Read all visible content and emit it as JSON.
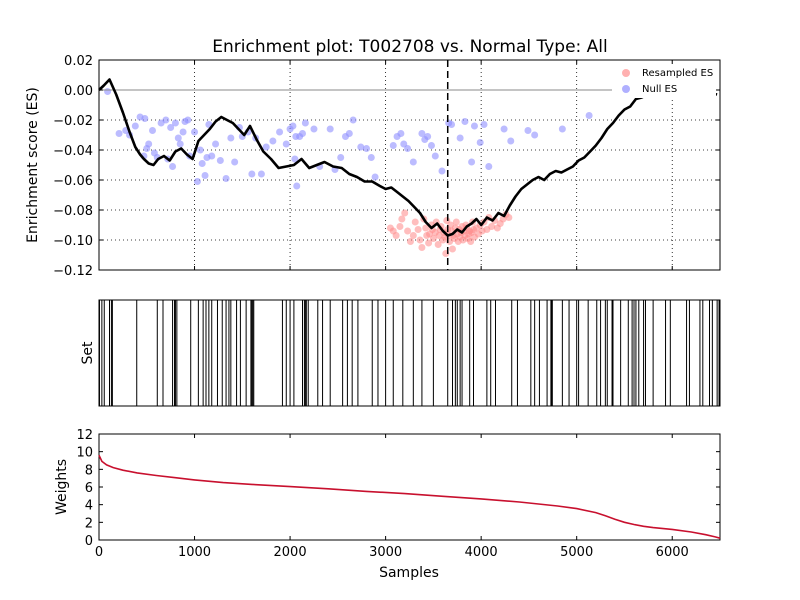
{
  "chart_data": [
    {
      "panel": "enrichment",
      "type": "line",
      "title": "Enrichment plot: T002708 vs. Normal Type: All",
      "xlabel": "",
      "ylabel": "Enrichment score (ES)",
      "xlim": [
        0,
        6500
      ],
      "ylim": [
        -0.12,
        0.02
      ],
      "yticks": [
        "0.02",
        "0.00",
        "−0.02",
        "−0.04",
        "−0.06",
        "−0.08",
        "−0.10",
        "−0.12"
      ],
      "grid": true,
      "legend_position": "top-right",
      "legend": [
        {
          "label": "Resampled ES",
          "color": "#ffb0b0"
        },
        {
          "label": "Null ES",
          "color": "#b0b0ff"
        }
      ],
      "vline_x": 3650,
      "es_line": {
        "color": "#000000",
        "x": [
          0,
          50,
          110,
          180,
          250,
          320,
          380,
          430,
          470,
          520,
          570,
          620,
          680,
          740,
          800,
          860,
          920,
          980,
          1040,
          1100,
          1160,
          1220,
          1280,
          1340,
          1400,
          1460,
          1520,
          1580,
          1650,
          1720,
          1800,
          1880,
          1960,
          2040,
          2120,
          2200,
          2280,
          2360,
          2450,
          2540,
          2620,
          2700,
          2780,
          2860,
          2940,
          3000,
          3060,
          3120,
          3180,
          3240,
          3300,
          3360,
          3420,
          3480,
          3540,
          3600,
          3650,
          3700,
          3750,
          3800,
          3850,
          3900,
          3950,
          4000,
          4060,
          4120,
          4180,
          4240,
          4300,
          4360,
          4420,
          4480,
          4540,
          4600,
          4660,
          4720,
          4780,
          4840,
          4900,
          4960,
          5020,
          5080,
          5140,
          5200,
          5260,
          5320,
          5380,
          5440,
          5500,
          5560,
          5620,
          5680,
          5740,
          5800,
          5860,
          5920,
          5980,
          6040,
          6100,
          6160,
          6220,
          6280,
          6340,
          6400,
          6470
        ],
        "y": [
          0.0,
          0.003,
          0.007,
          -0.003,
          -0.015,
          -0.028,
          -0.038,
          -0.043,
          -0.046,
          -0.049,
          -0.05,
          -0.046,
          -0.044,
          -0.047,
          -0.041,
          -0.039,
          -0.043,
          -0.046,
          -0.034,
          -0.03,
          -0.026,
          -0.021,
          -0.018,
          -0.02,
          -0.022,
          -0.026,
          -0.03,
          -0.024,
          -0.033,
          -0.041,
          -0.046,
          -0.052,
          -0.051,
          -0.05,
          -0.046,
          -0.052,
          -0.05,
          -0.048,
          -0.051,
          -0.052,
          -0.056,
          -0.058,
          -0.061,
          -0.061,
          -0.064,
          -0.066,
          -0.065,
          -0.068,
          -0.071,
          -0.074,
          -0.078,
          -0.082,
          -0.088,
          -0.092,
          -0.089,
          -0.094,
          -0.097,
          -0.096,
          -0.093,
          -0.095,
          -0.091,
          -0.089,
          -0.086,
          -0.09,
          -0.085,
          -0.087,
          -0.082,
          -0.084,
          -0.077,
          -0.071,
          -0.066,
          -0.063,
          -0.06,
          -0.058,
          -0.06,
          -0.056,
          -0.054,
          -0.055,
          -0.053,
          -0.051,
          -0.047,
          -0.045,
          -0.041,
          -0.037,
          -0.032,
          -0.026,
          -0.022,
          -0.017,
          -0.013,
          -0.011,
          -0.006,
          -0.005,
          -0.003,
          -0.004,
          -0.002,
          -0.001,
          -0.001,
          -0.001,
          0.0,
          0.001,
          0.0,
          0.0,
          0.0,
          -0.002,
          -0.003
        ]
      },
      "null_es": {
        "color": "#8f8fff",
        "points": [
          [
            90,
            -0.001
          ],
          [
            210,
            -0.029
          ],
          [
            280,
            -0.027
          ],
          [
            320,
            -0.03
          ],
          [
            380,
            -0.024
          ],
          [
            430,
            -0.018
          ],
          [
            470,
            -0.044
          ],
          [
            480,
            -0.019
          ],
          [
            500,
            -0.039
          ],
          [
            520,
            -0.036
          ],
          [
            560,
            -0.027
          ],
          [
            580,
            -0.042
          ],
          [
            610,
            -0.045
          ],
          [
            650,
            -0.022
          ],
          [
            700,
            -0.02
          ],
          [
            720,
            -0.046
          ],
          [
            750,
            -0.025
          ],
          [
            770,
            -0.051
          ],
          [
            800,
            -0.022
          ],
          [
            830,
            -0.032
          ],
          [
            850,
            -0.036
          ],
          [
            880,
            -0.028
          ],
          [
            900,
            -0.021
          ],
          [
            930,
            -0.02
          ],
          [
            950,
            -0.044
          ],
          [
            1000,
            -0.028
          ],
          [
            1030,
            -0.061
          ],
          [
            1060,
            -0.04
          ],
          [
            1080,
            -0.049
          ],
          [
            1110,
            -0.057
          ],
          [
            1130,
            -0.045
          ],
          [
            1150,
            -0.023
          ],
          [
            1180,
            -0.044
          ],
          [
            1220,
            -0.036
          ],
          [
            1270,
            -0.047
          ],
          [
            1330,
            -0.059
          ],
          [
            1380,
            -0.032
          ],
          [
            1420,
            -0.048
          ],
          [
            1470,
            -0.025
          ],
          [
            1500,
            -0.031
          ],
          [
            1560,
            -0.028
          ],
          [
            1600,
            -0.056
          ],
          [
            1640,
            -0.032
          ],
          [
            1700,
            -0.056
          ],
          [
            1750,
            -0.038
          ],
          [
            1820,
            -0.034
          ],
          [
            1890,
            -0.028
          ],
          [
            1960,
            -0.036
          ],
          [
            2000,
            -0.026
          ],
          [
            2030,
            -0.024
          ],
          [
            2050,
            -0.046
          ],
          [
            2060,
            -0.031
          ],
          [
            2070,
            -0.064
          ],
          [
            2100,
            -0.031
          ],
          [
            2130,
            -0.029
          ],
          [
            2160,
            -0.022
          ],
          [
            2250,
            -0.026
          ],
          [
            2310,
            -0.051
          ],
          [
            2420,
            -0.026
          ],
          [
            2470,
            -0.053
          ],
          [
            2530,
            -0.045
          ],
          [
            2580,
            -0.031
          ],
          [
            2620,
            -0.029
          ],
          [
            2660,
            -0.02
          ],
          [
            2740,
            -0.038
          ],
          [
            2800,
            -0.039
          ],
          [
            2850,
            -0.045
          ],
          [
            2890,
            -0.058
          ],
          [
            3080,
            -0.037
          ],
          [
            3120,
            -0.031
          ],
          [
            3160,
            -0.029
          ],
          [
            3190,
            -0.036
          ],
          [
            3230,
            -0.039
          ],
          [
            3290,
            -0.048
          ],
          [
            3380,
            -0.029
          ],
          [
            3410,
            -0.033
          ],
          [
            3440,
            -0.031
          ],
          [
            3480,
            -0.037
          ],
          [
            3520,
            -0.044
          ],
          [
            3590,
            -0.054
          ],
          [
            3660,
            -0.022
          ],
          [
            3690,
            -0.023
          ],
          [
            3780,
            -0.032
          ],
          [
            3830,
            -0.021
          ],
          [
            3900,
            -0.048
          ],
          [
            3930,
            -0.024
          ],
          [
            3990,
            -0.035
          ],
          [
            4030,
            -0.023
          ],
          [
            4080,
            -0.051
          ],
          [
            4240,
            -0.026
          ],
          [
            4310,
            -0.034
          ],
          [
            4490,
            -0.027
          ],
          [
            4560,
            -0.03
          ],
          [
            4850,
            -0.026
          ],
          [
            5130,
            -0.017
          ]
        ]
      },
      "resampled_es": {
        "color": "#ff8888",
        "points": [
          [
            3050,
            -0.092
          ],
          [
            3080,
            -0.094
          ],
          [
            3110,
            -0.097
          ],
          [
            3150,
            -0.091
          ],
          [
            3170,
            -0.086
          ],
          [
            3200,
            -0.082
          ],
          [
            3230,
            -0.094
          ],
          [
            3260,
            -0.101
          ],
          [
            3290,
            -0.097
          ],
          [
            3310,
            -0.088
          ],
          [
            3340,
            -0.093
          ],
          [
            3360,
            -0.1
          ],
          [
            3380,
            -0.105
          ],
          [
            3400,
            -0.086
          ],
          [
            3420,
            -0.092
          ],
          [
            3430,
            -0.097
          ],
          [
            3450,
            -0.102
          ],
          [
            3460,
            -0.096
          ],
          [
            3480,
            -0.09
          ],
          [
            3490,
            -0.093
          ],
          [
            3500,
            -0.099
          ],
          [
            3520,
            -0.095
          ],
          [
            3530,
            -0.088
          ],
          [
            3550,
            -0.103
          ],
          [
            3560,
            -0.097
          ],
          [
            3570,
            -0.093
          ],
          [
            3580,
            -0.091
          ],
          [
            3600,
            -0.1
          ],
          [
            3610,
            -0.095
          ],
          [
            3620,
            -0.098
          ],
          [
            3630,
            -0.109
          ],
          [
            3640,
            -0.087
          ],
          [
            3650,
            -0.093
          ],
          [
            3660,
            -0.097
          ],
          [
            3670,
            -0.101
          ],
          [
            3680,
            -0.09
          ],
          [
            3690,
            -0.094
          ],
          [
            3700,
            -0.106
          ],
          [
            3710,
            -0.097
          ],
          [
            3720,
            -0.099
          ],
          [
            3730,
            -0.092
          ],
          [
            3740,
            -0.088
          ],
          [
            3750,
            -0.096
          ],
          [
            3760,
            -0.101
          ],
          [
            3770,
            -0.093
          ],
          [
            3780,
            -0.098
          ],
          [
            3790,
            -0.095
          ],
          [
            3800,
            -0.091
          ],
          [
            3810,
            -0.1
          ],
          [
            3820,
            -0.094
          ],
          [
            3830,
            -0.097
          ],
          [
            3840,
            -0.09
          ],
          [
            3850,
            -0.092
          ],
          [
            3860,
            -0.099
          ],
          [
            3870,
            -0.096
          ],
          [
            3880,
            -0.094
          ],
          [
            3890,
            -0.101
          ],
          [
            3900,
            -0.095
          ],
          [
            3910,
            -0.088
          ],
          [
            3920,
            -0.093
          ],
          [
            3930,
            -0.098
          ],
          [
            3950,
            -0.092
          ],
          [
            3970,
            -0.096
          ],
          [
            3990,
            -0.09
          ],
          [
            4010,
            -0.094
          ],
          [
            4030,
            -0.088
          ],
          [
            4060,
            -0.093
          ],
          [
            4080,
            -0.085
          ],
          [
            4110,
            -0.091
          ],
          [
            4140,
            -0.087
          ],
          [
            4170,
            -0.092
          ],
          [
            4200,
            -0.089
          ],
          [
            4230,
            -0.086
          ],
          [
            4260,
            -0.083
          ],
          [
            4290,
            -0.085
          ]
        ]
      }
    },
    {
      "panel": "set",
      "type": "barcode",
      "ylabel": "Set",
      "xlim": [
        0,
        6500
      ],
      "hits": [
        5,
        30,
        55,
        110,
        130,
        140,
        395,
        610,
        670,
        770,
        790,
        800,
        815,
        960,
        1040,
        1090,
        1120,
        1150,
        1180,
        1240,
        1290,
        1330,
        1360,
        1380,
        1440,
        1480,
        1540,
        1590,
        1600,
        1610,
        1620,
        1920,
        1960,
        2000,
        2040,
        2130,
        2150,
        2160,
        2170,
        2190,
        2290,
        2340,
        2420,
        2550,
        2600,
        2650,
        2710,
        2860,
        2920,
        3000,
        3080,
        3180,
        3290,
        3380,
        3500,
        3650,
        3700,
        3730,
        3750,
        3780,
        3800,
        3880,
        3920,
        4060,
        4100,
        4150,
        4320,
        4380,
        4520,
        4560,
        4610,
        4690,
        4730,
        4735,
        4740,
        4745,
        4850,
        4920,
        5000,
        5020,
        5120,
        5210,
        5250,
        5300,
        5320,
        5370,
        5380,
        5460,
        5540,
        5580,
        5600,
        5620,
        5650,
        5700,
        5720,
        5800,
        5930,
        5980,
        6150,
        6180,
        6290,
        6320,
        6390,
        6420,
        6470,
        6490
      ]
    },
    {
      "panel": "weights",
      "type": "line",
      "xlabel": "Samples",
      "ylabel": "Weights",
      "xlim": [
        0,
        6500
      ],
      "ylim": [
        0,
        12
      ],
      "xticks": [
        "0",
        "1000",
        "2000",
        "3000",
        "4000",
        "5000",
        "6000"
      ],
      "yticks": [
        "12",
        "10",
        "8",
        "6",
        "4",
        "2",
        "0"
      ],
      "color": "#c8102e",
      "x": [
        0,
        30,
        80,
        150,
        250,
        400,
        600,
        800,
        1000,
        1300,
        1600,
        2000,
        2400,
        2800,
        3200,
        3600,
        4000,
        4400,
        4800,
        5000,
        5200,
        5300,
        5400,
        5500,
        5600,
        5700,
        5800,
        6000,
        6200,
        6350,
        6450,
        6500
      ],
      "y": [
        9.6,
        8.9,
        8.5,
        8.2,
        7.9,
        7.6,
        7.3,
        7.05,
        6.8,
        6.5,
        6.3,
        6.05,
        5.8,
        5.5,
        5.25,
        4.95,
        4.65,
        4.3,
        3.85,
        3.55,
        3.1,
        2.75,
        2.35,
        2.0,
        1.75,
        1.55,
        1.4,
        1.2,
        0.9,
        0.6,
        0.35,
        0.2
      ]
    }
  ]
}
